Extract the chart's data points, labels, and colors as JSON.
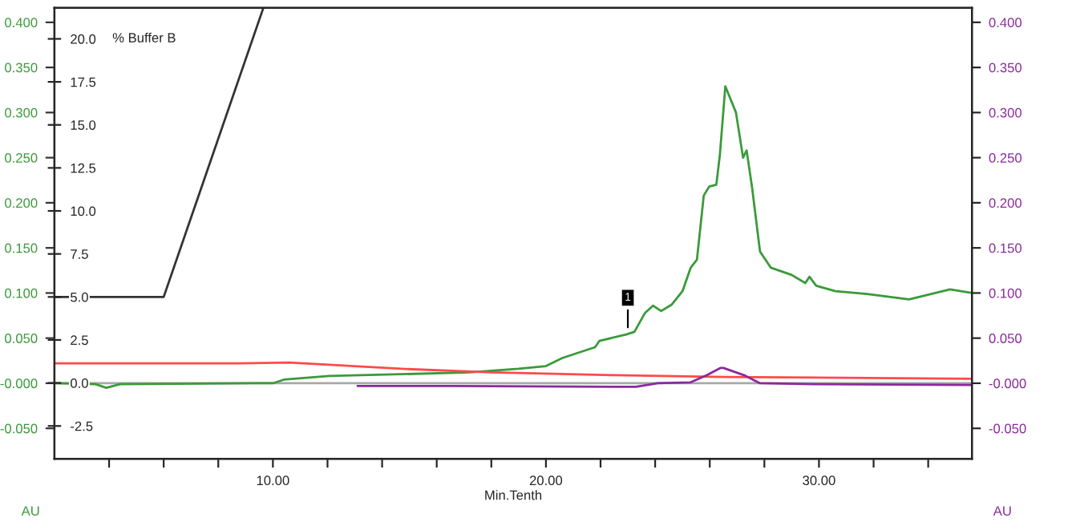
{
  "chart_data": {
    "type": "line",
    "xlabel": "Min.Tenth",
    "ylabel": "AU",
    "y2label": "AU",
    "y3label": "% Buffer B",
    "xlim": [
      2,
      35.6
    ],
    "xticks": [
      {
        "value": 4,
        "label": null
      },
      {
        "value": 6,
        "label": null
      },
      {
        "value": 8,
        "label": null
      },
      {
        "value": 10,
        "label": "10.00"
      },
      {
        "value": 12,
        "label": null
      },
      {
        "value": 14,
        "label": null
      },
      {
        "value": 16,
        "label": null
      },
      {
        "value": 18,
        "label": null
      },
      {
        "value": 20,
        "label": "20.00"
      },
      {
        "value": 22,
        "label": null
      },
      {
        "value": 24,
        "label": null
      },
      {
        "value": 26,
        "label": null
      },
      {
        "value": 28,
        "label": null
      },
      {
        "value": 30,
        "label": "30.00"
      },
      {
        "value": 32,
        "label": null
      },
      {
        "value": 34,
        "label": null
      }
    ],
    "ylim": [
      -0.0836,
      0.416
    ],
    "yticks": [
      {
        "value": -0.05,
        "label": "-0.050"
      },
      {
        "value": 0,
        "label": "-0.000"
      },
      {
        "value": 0.05,
        "label": "0.050"
      },
      {
        "value": 0.1,
        "label": "0.100"
      },
      {
        "value": 0.15,
        "label": "0.150"
      },
      {
        "value": 0.2,
        "label": "0.200"
      },
      {
        "value": 0.25,
        "label": "0.250"
      },
      {
        "value": 0.3,
        "label": "0.300"
      },
      {
        "value": 0.35,
        "label": "0.350"
      },
      {
        "value": 0.4,
        "label": "0.400"
      }
    ],
    "y2lim": [
      -0.0836,
      0.416
    ],
    "y2ticks": [
      {
        "value": -0.05,
        "label": "-0.050"
      },
      {
        "value": 0,
        "label": "-0.000"
      },
      {
        "value": 0.05,
        "label": "0.050"
      },
      {
        "value": 0.1,
        "label": "0.100"
      },
      {
        "value": 0.15,
        "label": "0.150"
      },
      {
        "value": 0.2,
        "label": "0.200"
      },
      {
        "value": 0.25,
        "label": "0.250"
      },
      {
        "value": 0.3,
        "label": "0.300"
      },
      {
        "value": 0.35,
        "label": "0.350"
      },
      {
        "value": 0.4,
        "label": "0.400"
      }
    ],
    "y3lim": [
      -4.4,
      21.8
    ],
    "y3ticks": [
      -2.5,
      {
        "value": 0,
        "label": "0.0"
      },
      2.5,
      {
        "value": 5,
        "label": "5.0"
      },
      7.5,
      {
        "value": 10,
        "label": "10.0"
      },
      12.5,
      {
        "value": 15,
        "label": "15.0"
      },
      17.5,
      {
        "value": 20,
        "label": "20.0"
      }
    ],
    "ref_lines": [
      {
        "axis": "y",
        "value": 0,
        "color": "#a8a8a8"
      }
    ],
    "annotations": [
      {
        "text": "1",
        "x": 23.0,
        "y": 0.057
      }
    ],
    "grid": false,
    "marker": "none",
    "line_style": "solid",
    "series": [
      {
        "axis": "y",
        "color": "#3a9a3a",
        "x": [
          2.0,
          3.5,
          3.9,
          4.4,
          9.4,
          10.0,
          10.4,
          12.06,
          14.7,
          17.2,
          19.0,
          20.0,
          20.6,
          21.8,
          21.96,
          22.94,
          23.24,
          23.63,
          23.92,
          24.22,
          24.6,
          25.0,
          25.3,
          25.53,
          25.78,
          25.98,
          26.24,
          26.37,
          26.57,
          26.76,
          26.96,
          27.22,
          27.35,
          27.55,
          27.84,
          28.24,
          29.0,
          29.5,
          29.65,
          29.9,
          30.6,
          31.76,
          33.3,
          34.8,
          35.6
        ],
        "values": [
          0.0,
          -0.001,
          -0.005,
          -0.001,
          0.0,
          0.0,
          0.004,
          0.008,
          0.01,
          0.012,
          0.016,
          0.019,
          0.028,
          0.04,
          0.047,
          0.054,
          0.057,
          0.078,
          0.086,
          0.08,
          0.087,
          0.102,
          0.128,
          0.137,
          0.208,
          0.218,
          0.22,
          0.253,
          0.329,
          0.315,
          0.3,
          0.25,
          0.258,
          0.217,
          0.146,
          0.128,
          0.12,
          0.111,
          0.118,
          0.108,
          0.102,
          0.099,
          0.093,
          0.104,
          0.1
        ]
      },
      {
        "axis": "y",
        "color": "#ff4a4a",
        "x": [
          2.0,
          8.8,
          10.6,
          14.7,
          18.0,
          22.5,
          26.5,
          35.6
        ],
        "values": [
          0.022,
          0.022,
          0.023,
          0.016,
          0.012,
          0.009,
          0.007,
          0.005
        ]
      },
      {
        "axis": "y2",
        "color": "#8b2a9b",
        "x": [
          13.1,
          16.6,
          23.3,
          24.1,
          25.3,
          25.9,
          26.4,
          26.5,
          27.25,
          27.84,
          29.8,
          35.6
        ],
        "values": [
          -0.003,
          -0.003,
          -0.004,
          0.0,
          0.001,
          0.009,
          0.017,
          0.017,
          0.009,
          0.0,
          -0.001,
          -0.002
        ]
      },
      {
        "axis": "y3",
        "color": "#333333",
        "x": [
          2.0,
          6.0,
          9.65
        ],
        "values": [
          5.0,
          5.0,
          21.8
        ]
      }
    ]
  }
}
